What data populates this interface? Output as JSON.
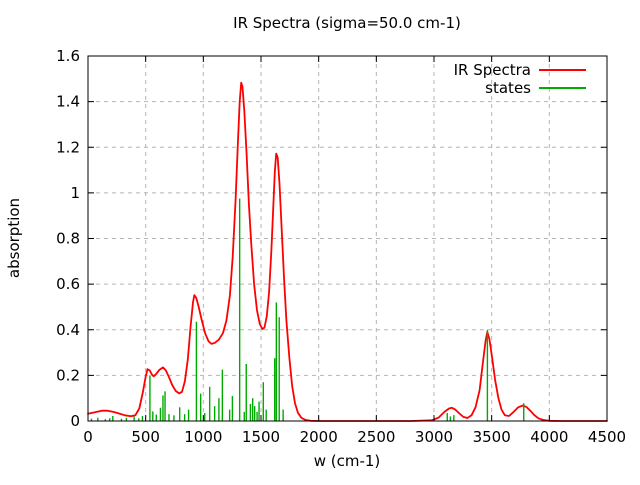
{
  "chart_data": {
    "type": "line",
    "title": "IR Spectra (sigma=50.0 cm-1)",
    "xlabel": "w (cm-1)",
    "ylabel": "absorption",
    "xlim": [
      0,
      4500
    ],
    "ylim": [
      0,
      1.6
    ],
    "x_ticks": [
      0,
      500,
      1000,
      1500,
      2000,
      2500,
      3000,
      3500,
      4000,
      4500
    ],
    "y_ticks": [
      0,
      0.2,
      0.4,
      0.6,
      0.8,
      1,
      1.2,
      1.4,
      1.6
    ],
    "grid": true,
    "grid_color": "#b5b5b5",
    "border_color": "#000000",
    "legend": {
      "position": "top-right",
      "entries": [
        {
          "label": "IR Spectra",
          "color": "#ff0000"
        },
        {
          "label": "states",
          "color": "#00aa00"
        }
      ]
    },
    "series": [
      {
        "name": "IR Spectra",
        "style": "line",
        "color": "#ff0000",
        "points": [
          [
            0,
            0.032
          ],
          [
            60,
            0.038
          ],
          [
            120,
            0.045
          ],
          [
            170,
            0.045
          ],
          [
            220,
            0.04
          ],
          [
            270,
            0.033
          ],
          [
            320,
            0.025
          ],
          [
            370,
            0.021
          ],
          [
            410,
            0.025
          ],
          [
            445,
            0.055
          ],
          [
            475,
            0.125
          ],
          [
            500,
            0.195
          ],
          [
            516,
            0.227
          ],
          [
            535,
            0.222
          ],
          [
            555,
            0.203
          ],
          [
            570,
            0.196
          ],
          [
            590,
            0.205
          ],
          [
            620,
            0.225
          ],
          [
            650,
            0.235
          ],
          [
            675,
            0.222
          ],
          [
            700,
            0.195
          ],
          [
            730,
            0.158
          ],
          [
            760,
            0.132
          ],
          [
            790,
            0.121
          ],
          [
            815,
            0.128
          ],
          [
            840,
            0.175
          ],
          [
            865,
            0.27
          ],
          [
            890,
            0.415
          ],
          [
            910,
            0.52
          ],
          [
            922,
            0.552
          ],
          [
            938,
            0.54
          ],
          [
            960,
            0.5
          ],
          [
            985,
            0.445
          ],
          [
            1015,
            0.385
          ],
          [
            1045,
            0.35
          ],
          [
            1070,
            0.338
          ],
          [
            1100,
            0.343
          ],
          [
            1135,
            0.357
          ],
          [
            1170,
            0.385
          ],
          [
            1200,
            0.44
          ],
          [
            1230,
            0.55
          ],
          [
            1255,
            0.72
          ],
          [
            1280,
            0.97
          ],
          [
            1300,
            1.22
          ],
          [
            1315,
            1.4
          ],
          [
            1328,
            1.483
          ],
          [
            1340,
            1.465
          ],
          [
            1355,
            1.36
          ],
          [
            1375,
            1.17
          ],
          [
            1395,
            0.95
          ],
          [
            1415,
            0.78
          ],
          [
            1440,
            0.6
          ],
          [
            1465,
            0.485
          ],
          [
            1490,
            0.425
          ],
          [
            1512,
            0.403
          ],
          [
            1530,
            0.41
          ],
          [
            1550,
            0.46
          ],
          [
            1570,
            0.565
          ],
          [
            1590,
            0.75
          ],
          [
            1605,
            0.92
          ],
          [
            1620,
            1.09
          ],
          [
            1632,
            1.172
          ],
          [
            1645,
            1.155
          ],
          [
            1660,
            1.04
          ],
          [
            1680,
            0.83
          ],
          [
            1700,
            0.62
          ],
          [
            1720,
            0.44
          ],
          [
            1745,
            0.28
          ],
          [
            1770,
            0.155
          ],
          [
            1795,
            0.078
          ],
          [
            1820,
            0.036
          ],
          [
            1850,
            0.014
          ],
          [
            1885,
            0.005
          ],
          [
            1930,
            0.001
          ],
          [
            2000,
            0
          ],
          [
            2200,
            0
          ],
          [
            2500,
            0
          ],
          [
            2800,
            0
          ],
          [
            2980,
            0.003
          ],
          [
            3040,
            0.015
          ],
          [
            3090,
            0.04
          ],
          [
            3130,
            0.055
          ],
          [
            3155,
            0.058
          ],
          [
            3185,
            0.05
          ],
          [
            3220,
            0.033
          ],
          [
            3255,
            0.018
          ],
          [
            3290,
            0.013
          ],
          [
            3325,
            0.025
          ],
          [
            3360,
            0.06
          ],
          [
            3395,
            0.135
          ],
          [
            3425,
            0.26
          ],
          [
            3448,
            0.355
          ],
          [
            3462,
            0.39
          ],
          [
            3480,
            0.36
          ],
          [
            3505,
            0.275
          ],
          [
            3530,
            0.18
          ],
          [
            3558,
            0.1
          ],
          [
            3585,
            0.05
          ],
          [
            3615,
            0.025
          ],
          [
            3650,
            0.022
          ],
          [
            3690,
            0.04
          ],
          [
            3730,
            0.06
          ],
          [
            3770,
            0.068
          ],
          [
            3800,
            0.062
          ],
          [
            3835,
            0.045
          ],
          [
            3870,
            0.026
          ],
          [
            3905,
            0.012
          ],
          [
            3945,
            0.005
          ],
          [
            4000,
            0.001
          ],
          [
            4100,
            0
          ],
          [
            4300,
            0
          ],
          [
            4500,
            0
          ]
        ]
      },
      {
        "name": "states",
        "style": "impulses",
        "color": "#00aa00",
        "points": [
          [
            30,
            0.01
          ],
          [
            85,
            0.014
          ],
          [
            150,
            0.008
          ],
          [
            188,
            0.012
          ],
          [
            215,
            0.022
          ],
          [
            290,
            0.01
          ],
          [
            333,
            0.014
          ],
          [
            400,
            0.02
          ],
          [
            440,
            0.012
          ],
          [
            472,
            0.022
          ],
          [
            537,
            0.2
          ],
          [
            562,
            0.042
          ],
          [
            592,
            0.028
          ],
          [
            628,
            0.058
          ],
          [
            650,
            0.112
          ],
          [
            668,
            0.13
          ],
          [
            702,
            0.03
          ],
          [
            745,
            0.025
          ],
          [
            795,
            0.06
          ],
          [
            838,
            0.03
          ],
          [
            872,
            0.05
          ],
          [
            940,
            0.435
          ],
          [
            977,
            0.12
          ],
          [
            1012,
            0.035
          ],
          [
            1055,
            0.15
          ],
          [
            1098,
            0.065
          ],
          [
            1135,
            0.1
          ],
          [
            1165,
            0.225
          ],
          [
            1228,
            0.05
          ],
          [
            1252,
            0.11
          ],
          [
            1315,
            0.975
          ],
          [
            1355,
            0.04
          ],
          [
            1372,
            0.25
          ],
          [
            1408,
            0.075
          ],
          [
            1428,
            0.1
          ],
          [
            1445,
            0.065
          ],
          [
            1466,
            0.04
          ],
          [
            1483,
            0.085
          ],
          [
            1520,
            0.17
          ],
          [
            1545,
            0.05
          ],
          [
            1619,
            0.275
          ],
          [
            1633,
            0.52
          ],
          [
            1658,
            0.455
          ],
          [
            1692,
            0.05
          ],
          [
            3115,
            0.035
          ],
          [
            3142,
            0.02
          ],
          [
            3172,
            0.026
          ],
          [
            3463,
            0.4
          ],
          [
            3778,
            0.078
          ]
        ]
      }
    ]
  }
}
